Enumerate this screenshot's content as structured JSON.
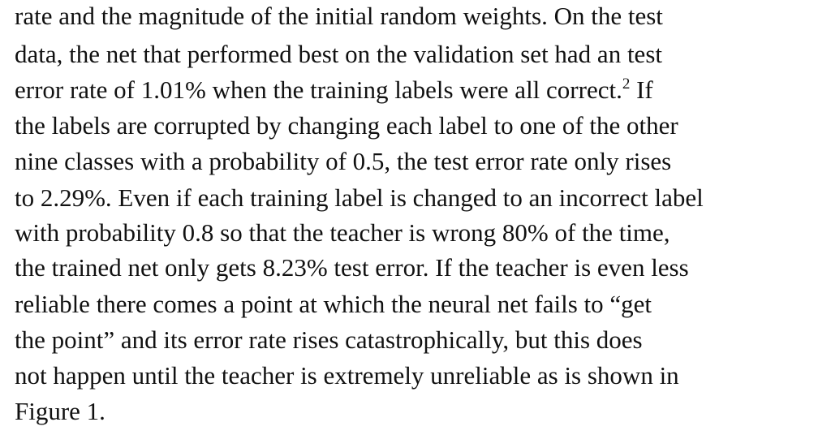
{
  "paragraph": {
    "lines": [
      "rate and the magnitude of the initial random weights. On the test",
      "data, the net that performed best on the validation set had an test",
      "error rate of 1.01% when the training labels were all correct.",
      "the labels are corrupted by changing each label to one of the other",
      "nine classes with a probability of 0.5, the test error rate only rises",
      "to 2.29%. Even if each training label is changed to an incorrect label",
      "with probability 0.8 so that the teacher is wrong 80% of the time,",
      "the trained net only gets 8.23% test error. If the teacher is even less",
      "reliable there comes a point at which the neural net fails to “get",
      "the point” and its error rate rises catastrophically, but this does",
      "not happen until the teacher is extremely unreliable as is shown in",
      "Figure 1."
    ],
    "footnote_marker": "2",
    "line2_tail": " If"
  }
}
